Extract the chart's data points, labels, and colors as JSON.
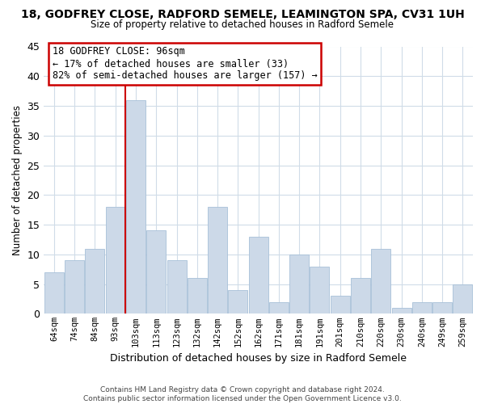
{
  "title": "18, GODFREY CLOSE, RADFORD SEMELE, LEAMINGTON SPA, CV31 1UH",
  "subtitle": "Size of property relative to detached houses in Radford Semele",
  "xlabel": "Distribution of detached houses by size in Radford Semele",
  "ylabel": "Number of detached properties",
  "categories": [
    "64sqm",
    "74sqm",
    "84sqm",
    "93sqm",
    "103sqm",
    "113sqm",
    "123sqm",
    "132sqm",
    "142sqm",
    "152sqm",
    "162sqm",
    "171sqm",
    "181sqm",
    "191sqm",
    "201sqm",
    "210sqm",
    "220sqm",
    "230sqm",
    "240sqm",
    "249sqm",
    "259sqm"
  ],
  "values": [
    7,
    9,
    11,
    18,
    36,
    14,
    9,
    6,
    18,
    4,
    13,
    2,
    10,
    8,
    3,
    6,
    11,
    1,
    2,
    2,
    5
  ],
  "bar_color": "#ccd9e8",
  "bar_edge_color": "#a8c0d8",
  "ylim": [
    0,
    45
  ],
  "yticks": [
    0,
    5,
    10,
    15,
    20,
    25,
    30,
    35,
    40,
    45
  ],
  "vline_x_index": 3.5,
  "vline_color": "#cc0000",
  "ann_line1": "18 GODFREY CLOSE: 96sqm",
  "ann_line2": "← 17% of detached houses are smaller (33)",
  "ann_line3": "82% of semi-detached houses are larger (157) →",
  "footer_line1": "Contains HM Land Registry data © Crown copyright and database right 2024.",
  "footer_line2": "Contains public sector information licensed under the Open Government Licence v3.0.",
  "background_color": "#ffffff",
  "grid_color": "#d0dce8"
}
